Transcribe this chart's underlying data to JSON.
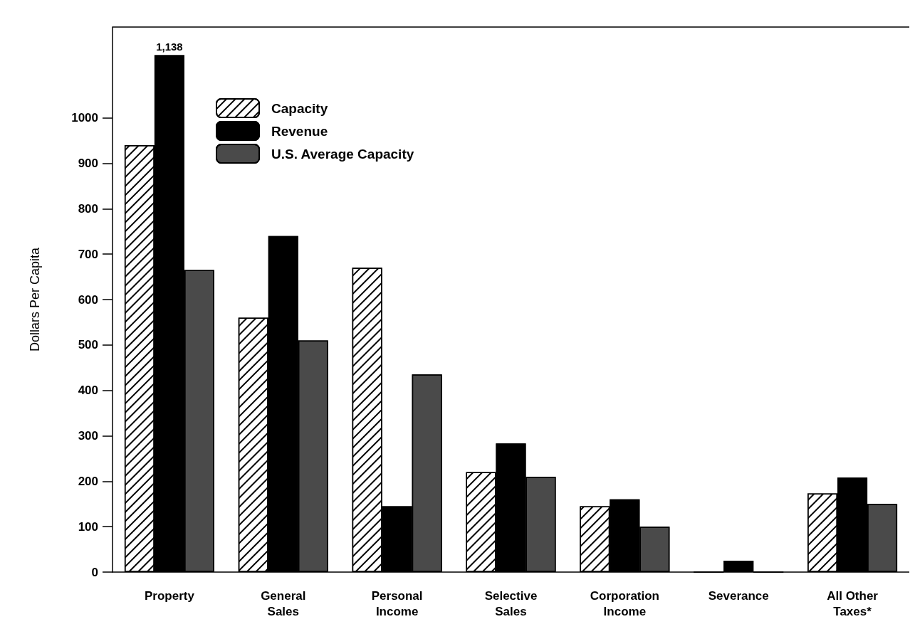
{
  "chart_data": {
    "type": "bar",
    "ylabel": "Dollars Per Capita",
    "categories": [
      "Property",
      "General\nSales",
      "Personal\nIncome",
      "Selective\nSales",
      "Corporation\nIncome",
      "Severance",
      "All Other\nTaxes*"
    ],
    "series": [
      {
        "name": "Capacity",
        "color": "#ffffff",
        "values": [
          940,
          560,
          670,
          220,
          145,
          0,
          173
        ]
      },
      {
        "name": "Revenue",
        "color": "#000000",
        "values": [
          1138,
          740,
          145,
          283,
          160,
          25,
          208
        ],
        "value_labels": [
          "1,138",
          null,
          null,
          null,
          null,
          null,
          null
        ]
      },
      {
        "name": "U.S. Average Capacity",
        "color": "#4a4a4a",
        "values": [
          665,
          510,
          435,
          210,
          100,
          0,
          150
        ]
      }
    ],
    "ylim": [
      0,
      1200
    ],
    "yticks": [
      0,
      100,
      200,
      300,
      400,
      500,
      600,
      700,
      800,
      900,
      1000
    ],
    "grid": false,
    "legend": "top left"
  }
}
